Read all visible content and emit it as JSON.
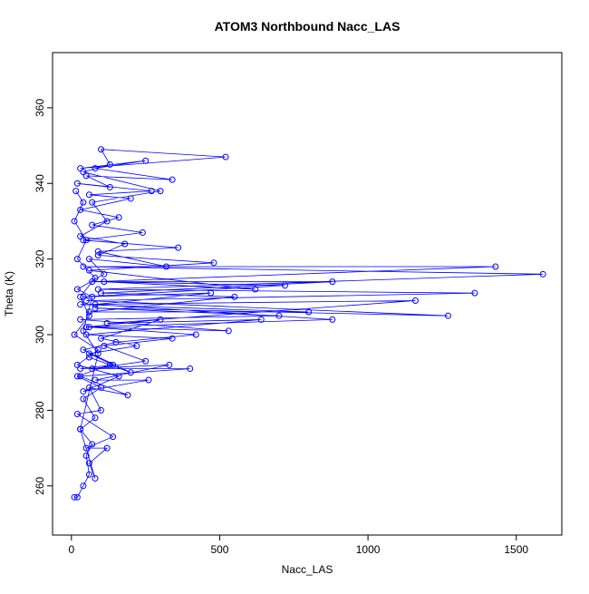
{
  "chart_data": {
    "type": "line",
    "title": "ATOM3 Northbound Nacc_LAS",
    "xlabel": "Nacc_LAS",
    "ylabel": "Theta (K)",
    "series": [
      {
        "name": null,
        "color": "#0000ff",
        "x": [
          10,
          20,
          40,
          60,
          50,
          70,
          30,
          80,
          40,
          100,
          20,
          130,
          60,
          200,
          40,
          150,
          420,
          60,
          530,
          30,
          700,
          80,
          1270,
          50,
          1360,
          90,
          1590,
          40,
          1430,
          70,
          880,
          100,
          550,
          60,
          800,
          30,
          1160,
          120,
          640,
          50,
          340,
          110,
          250,
          70,
          400,
          30,
          190,
          60,
          100,
          20,
          140,
          50,
          120,
          60,
          80,
          30,
          90,
          40,
          70,
          20,
          110,
          60,
          320,
          90,
          360,
          40,
          240,
          70,
          160,
          30,
          200,
          60,
          270,
          20,
          130,
          50,
          340,
          80,
          250,
          30,
          520,
          100,
          130,
          40,
          300,
          70,
          120,
          30,
          180,
          90,
          480,
          60,
          620,
          110,
          720,
          40,
          470,
          80,
          880,
          50,
          300,
          100,
          220,
          60,
          140,
          30,
          330,
          80,
          260,
          40,
          160,
          20,
          90,
          10,
          60,
          30,
          80,
          20,
          50,
          10,
          40,
          15
        ],
        "values": [
          257,
          257,
          260,
          263,
          268,
          271,
          275,
          278,
          283,
          286,
          289,
          292,
          294,
          290,
          296,
          298,
          300,
          302,
          301,
          304,
          305,
          307,
          305,
          309,
          311,
          312,
          316,
          318,
          318,
          314,
          314,
          311,
          310,
          306,
          306,
          308,
          309,
          303,
          304,
          300,
          299,
          297,
          293,
          291,
          291,
          289,
          284,
          286,
          280,
          279,
          273,
          270,
          270,
          266,
          262,
          275,
          295,
          301,
          310,
          312,
          316,
          320,
          318,
          322,
          323,
          325,
          327,
          329,
          331,
          333,
          336,
          337,
          338,
          340,
          339,
          342,
          341,
          344,
          346,
          344,
          347,
          349,
          345,
          343,
          338,
          335,
          330,
          326,
          324,
          321,
          319,
          317,
          312,
          314,
          313,
          310,
          311,
          308,
          304,
          302,
          304,
          299,
          297,
          295,
          292,
          291,
          292,
          288,
          288,
          285,
          289,
          292,
          296,
          300,
          305,
          310,
          315,
          320,
          325,
          330,
          335,
          338
        ]
      }
    ],
    "xlim": [
      -63.6,
      1653.6
    ],
    "xticks": [
      0,
      500,
      1000,
      1500
    ],
    "ylim": [
      247,
      374.6
    ],
    "yticks": [
      260,
      280,
      300,
      320,
      340,
      360
    ]
  }
}
